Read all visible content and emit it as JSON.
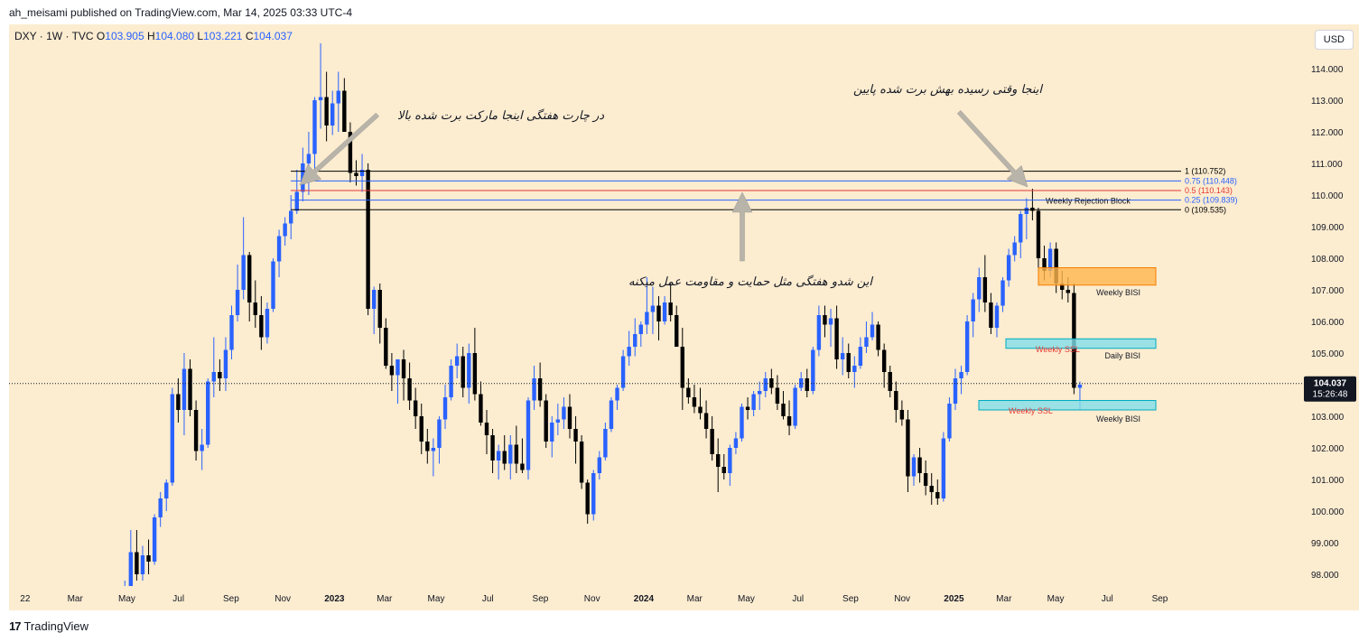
{
  "header": {
    "published": "ah_meisami published on TradingView.com, Mar 14, 2025 03:33 UTC-4"
  },
  "legend": {
    "symbol": "DXY · 1W · TVC",
    "o_label": "O",
    "o": "103.905",
    "h_label": "H",
    "h": "104.080",
    "l_label": "L",
    "l": "103.221",
    "c_label": "C",
    "c": "104.037"
  },
  "currency": "USD",
  "footer": {
    "brand": "TradingView"
  },
  "annotations": {
    "top_left": "در چارت هفتگی اینجا مارکت برت شده بالا",
    "top_right": "اینجا وقتی رسیده بهش برت شده پایین",
    "middle": "این شدو هفتگی مثل حمایت و مقاومت عمل میکنه"
  },
  "colors": {
    "background": "#fcecd0",
    "up": "#2962ff",
    "down": "#000000",
    "orange_zone": "#ffb74d",
    "cyan_zone": "#80deea",
    "fib_blue": "#2962ff",
    "fib_red": "#e53935",
    "arrow": "#b8b4aa"
  },
  "chart_data": {
    "type": "candlestick",
    "symbol": "DXY",
    "timeframe": "1W",
    "ylim": [
      97.4,
      115.2
    ],
    "y_ticks": [
      "98.000",
      "99.000",
      "100.000",
      "101.000",
      "102.000",
      "103.000",
      "104.000",
      "105.000",
      "106.000",
      "107.000",
      "108.000",
      "109.000",
      "110.000",
      "111.000",
      "112.000",
      "113.000",
      "114.000"
    ],
    "x_ticks": [
      {
        "label": "22",
        "date": "2022-01-01"
      },
      {
        "label": "Mar",
        "date": "2022-03-01"
      },
      {
        "label": "May",
        "date": "2022-05-01"
      },
      {
        "label": "Jul",
        "date": "2022-07-01"
      },
      {
        "label": "Sep",
        "date": "2022-09-01"
      },
      {
        "label": "Nov",
        "date": "2022-11-01"
      },
      {
        "label": "2023",
        "date": "2023-01-01"
      },
      {
        "label": "Mar",
        "date": "2023-03-01"
      },
      {
        "label": "May",
        "date": "2023-05-01"
      },
      {
        "label": "Jul",
        "date": "2023-07-01"
      },
      {
        "label": "Sep",
        "date": "2023-09-01"
      },
      {
        "label": "Nov",
        "date": "2023-11-01"
      },
      {
        "label": "2024",
        "date": "2024-01-01"
      },
      {
        "label": "Mar",
        "date": "2024-03-01"
      },
      {
        "label": "May",
        "date": "2024-05-01"
      },
      {
        "label": "Jul",
        "date": "2024-07-01"
      },
      {
        "label": "Sep",
        "date": "2024-09-01"
      },
      {
        "label": "Nov",
        "date": "2024-11-01"
      },
      {
        "label": "2025",
        "date": "2025-01-01"
      },
      {
        "label": "Mar",
        "date": "2025-03-01"
      },
      {
        "label": "May",
        "date": "2025-05-01"
      },
      {
        "label": "Jul",
        "date": "2025-07-01"
      },
      {
        "label": "Sep",
        "date": "2025-09-01"
      }
    ],
    "first_candle_date": "2022-02-14",
    "ohlc": [
      [
        96.1,
        96.6,
        95.8,
        96.4
      ],
      [
        96.4,
        97.0,
        96.2,
        96.6
      ],
      [
        96.6,
        97.8,
        96.4,
        97.6
      ],
      [
        97.6,
        99.4,
        97.2,
        98.7
      ],
      [
        98.7,
        99.4,
        97.8,
        98.0
      ],
      [
        98.0,
        98.9,
        97.8,
        98.6
      ],
      [
        98.6,
        99.1,
        98.0,
        98.4
      ],
      [
        98.4,
        99.9,
        98.3,
        99.8
      ],
      [
        99.8,
        100.6,
        99.5,
        100.4
      ],
      [
        100.4,
        101.0,
        100.0,
        100.9
      ],
      [
        100.9,
        103.9,
        100.8,
        103.7
      ],
      [
        103.7,
        104.2,
        102.8,
        103.2
      ],
      [
        103.2,
        105.0,
        102.4,
        104.5
      ],
      [
        104.5,
        104.8,
        103.0,
        103.2
      ],
      [
        103.2,
        103.5,
        101.6,
        101.9
      ],
      [
        101.9,
        102.6,
        101.3,
        102.1
      ],
      [
        102.1,
        104.2,
        102.0,
        104.1
      ],
      [
        104.1,
        105.5,
        103.6,
        104.4
      ],
      [
        104.4,
        104.8,
        103.8,
        104.2
      ],
      [
        104.2,
        105.5,
        103.8,
        105.1
      ],
      [
        105.1,
        106.5,
        104.8,
        106.2
      ],
      [
        106.2,
        107.8,
        106.0,
        107.0
      ],
      [
        107.0,
        109.3,
        106.7,
        108.1
      ],
      [
        108.1,
        108.2,
        106.0,
        106.6
      ],
      [
        106.6,
        107.3,
        105.8,
        106.2
      ],
      [
        106.2,
        106.8,
        105.1,
        105.5
      ],
      [
        105.5,
        106.6,
        105.3,
        106.4
      ],
      [
        106.4,
        108.0,
        106.3,
        107.9
      ],
      [
        107.9,
        108.9,
        107.4,
        108.7
      ],
      [
        108.7,
        109.3,
        108.4,
        109.1
      ],
      [
        109.1,
        110.0,
        108.6,
        109.5
      ],
      [
        109.5,
        110.8,
        109.4,
        110.1
      ],
      [
        110.1,
        111.5,
        109.8,
        111.0
      ],
      [
        111.0,
        112.0,
        110.0,
        111.3
      ],
      [
        111.3,
        113.1,
        110.8,
        113.0
      ],
      [
        113.0,
        114.8,
        112.1,
        113.1
      ],
      [
        113.1,
        113.9,
        111.7,
        112.2
      ],
      [
        112.2,
        113.3,
        111.9,
        112.9
      ],
      [
        112.9,
        113.9,
        112.0,
        113.3
      ],
      [
        113.3,
        113.7,
        112.1,
        112.0
      ],
      [
        112.0,
        112.3,
        110.4,
        110.7
      ],
      [
        110.7,
        111.1,
        110.3,
        110.6
      ],
      [
        110.6,
        111.3,
        110.1,
        110.8
      ],
      [
        110.8,
        111.0,
        106.2,
        106.4
      ],
      [
        106.4,
        107.1,
        105.6,
        107.0
      ],
      [
        107.0,
        107.2,
        105.3,
        105.8
      ],
      [
        105.8,
        106.1,
        104.5,
        104.6
      ],
      [
        104.6,
        105.0,
        103.8,
        104.3
      ],
      [
        104.3,
        104.7,
        103.4,
        104.8
      ],
      [
        104.8,
        105.1,
        103.5,
        104.2
      ],
      [
        104.2,
        104.7,
        103.2,
        103.5
      ],
      [
        103.5,
        103.9,
        102.6,
        103.0
      ],
      [
        103.0,
        103.4,
        101.8,
        102.2
      ],
      [
        102.2,
        102.6,
        101.5,
        101.9
      ],
      [
        101.9,
        102.3,
        101.1,
        102.0
      ],
      [
        102.0,
        103.0,
        101.5,
        102.9
      ],
      [
        102.9,
        104.0,
        102.6,
        103.6
      ],
      [
        103.6,
        104.8,
        103.5,
        104.6
      ],
      [
        104.6,
        105.3,
        104.2,
        104.9
      ],
      [
        104.9,
        105.2,
        103.6,
        103.9
      ],
      [
        103.9,
        105.3,
        103.4,
        105.0
      ],
      [
        105.0,
        105.8,
        103.5,
        103.7
      ],
      [
        103.7,
        104.1,
        102.7,
        102.8
      ],
      [
        102.8,
        103.2,
        101.8,
        102.4
      ],
      [
        102.4,
        102.6,
        101.2,
        101.6
      ],
      [
        101.6,
        102.1,
        101.0,
        101.9
      ],
      [
        101.9,
        102.4,
        101.3,
        101.5
      ],
      [
        101.5,
        102.4,
        101.0,
        102.1
      ],
      [
        102.1,
        102.7,
        101.2,
        101.5
      ],
      [
        101.5,
        102.3,
        101.2,
        101.3
      ],
      [
        101.3,
        103.6,
        101.0,
        103.5
      ],
      [
        103.5,
        104.6,
        103.2,
        104.2
      ],
      [
        104.2,
        104.7,
        103.3,
        103.5
      ],
      [
        103.5,
        103.7,
        102.0,
        102.2
      ],
      [
        102.2,
        103.0,
        101.7,
        102.8
      ],
      [
        102.8,
        103.4,
        102.4,
        102.9
      ],
      [
        102.9,
        103.6,
        102.6,
        103.3
      ],
      [
        103.3,
        103.7,
        102.3,
        102.6
      ],
      [
        102.6,
        103.0,
        101.5,
        102.2
      ],
      [
        102.2,
        102.4,
        100.7,
        100.9
      ],
      [
        100.9,
        101.0,
        99.6,
        99.9
      ],
      [
        99.9,
        101.3,
        99.7,
        101.2
      ],
      [
        101.2,
        101.9,
        101.0,
        101.7
      ],
      [
        101.7,
        102.8,
        101.6,
        102.6
      ],
      [
        102.6,
        103.6,
        102.5,
        103.5
      ],
      [
        103.5,
        104.0,
        103.2,
        103.9
      ],
      [
        103.9,
        105.1,
        103.8,
        104.9
      ],
      [
        104.9,
        105.7,
        104.6,
        105.2
      ],
      [
        105.2,
        106.1,
        104.9,
        105.6
      ],
      [
        105.6,
        106.0,
        105.2,
        105.9
      ],
      [
        105.9,
        107.4,
        105.6,
        106.3
      ],
      [
        106.3,
        107.1,
        105.6,
        106.5
      ],
      [
        106.5,
        106.8,
        105.4,
        106.0
      ],
      [
        106.0,
        106.8,
        105.9,
        106.6
      ],
      [
        106.6,
        107.2,
        106.0,
        106.2
      ],
      [
        106.2,
        106.5,
        105.2,
        105.2
      ],
      [
        105.2,
        105.8,
        103.2,
        103.9
      ],
      [
        103.9,
        104.2,
        103.4,
        103.6
      ],
      [
        103.6,
        104.0,
        103.1,
        103.3
      ],
      [
        103.3,
        103.9,
        102.9,
        103.1
      ],
      [
        103.1,
        103.5,
        102.3,
        102.6
      ],
      [
        102.6,
        103.0,
        101.6,
        101.8
      ],
      [
        101.8,
        102.3,
        100.6,
        101.4
      ],
      [
        101.4,
        101.8,
        101.0,
        101.2
      ],
      [
        101.2,
        102.1,
        100.8,
        102.0
      ],
      [
        102.0,
        102.5,
        101.8,
        102.3
      ],
      [
        102.3,
        103.4,
        102.2,
        103.3
      ],
      [
        103.3,
        103.6,
        102.9,
        103.2
      ],
      [
        103.2,
        103.8,
        103.0,
        103.7
      ],
      [
        103.7,
        104.1,
        103.2,
        103.8
      ],
      [
        103.8,
        104.4,
        103.6,
        104.2
      ],
      [
        104.2,
        104.5,
        103.7,
        103.9
      ],
      [
        103.9,
        104.3,
        103.2,
        103.4
      ],
      [
        103.4,
        103.8,
        102.9,
        103.0
      ],
      [
        103.0,
        103.5,
        102.4,
        102.7
      ],
      [
        102.7,
        104.0,
        102.6,
        103.9
      ],
      [
        103.9,
        104.4,
        103.8,
        104.2
      ],
      [
        104.2,
        104.5,
        103.6,
        103.8
      ],
      [
        103.8,
        105.2,
        103.7,
        105.1
      ],
      [
        105.1,
        106.5,
        104.9,
        106.2
      ],
      [
        106.2,
        106.5,
        105.5,
        105.9
      ],
      [
        105.9,
        106.4,
        105.2,
        106.1
      ],
      [
        106.1,
        106.5,
        104.5,
        104.8
      ],
      [
        104.8,
        105.5,
        104.3,
        105.0
      ],
      [
        105.0,
        105.3,
        104.2,
        104.4
      ],
      [
        104.4,
        104.9,
        103.9,
        104.6
      ],
      [
        104.6,
        105.5,
        104.5,
        105.2
      ],
      [
        105.2,
        106.0,
        105.0,
        105.5
      ],
      [
        105.5,
        106.3,
        105.4,
        105.9
      ],
      [
        105.9,
        106.0,
        104.9,
        105.1
      ],
      [
        105.1,
        105.3,
        103.9,
        104.4
      ],
      [
        104.4,
        104.6,
        103.6,
        103.8
      ],
      [
        103.8,
        104.1,
        102.8,
        103.2
      ],
      [
        103.2,
        103.5,
        102.7,
        102.9
      ],
      [
        102.9,
        103.2,
        100.6,
        101.1
      ],
      [
        101.1,
        101.8,
        100.8,
        101.7
      ],
      [
        101.7,
        102.0,
        100.9,
        101.2
      ],
      [
        101.2,
        101.6,
        100.5,
        100.8
      ],
      [
        100.8,
        101.2,
        100.2,
        100.6
      ],
      [
        100.6,
        101.0,
        100.2,
        100.4
      ],
      [
        100.4,
        102.5,
        100.3,
        102.3
      ],
      [
        102.3,
        103.6,
        102.2,
        103.4
      ],
      [
        103.4,
        104.5,
        103.2,
        104.2
      ],
      [
        104.2,
        104.6,
        103.7,
        104.4
      ],
      [
        104.4,
        106.2,
        104.3,
        106.0
      ],
      [
        106.0,
        106.9,
        105.5,
        106.7
      ],
      [
        106.7,
        107.7,
        106.3,
        107.4
      ],
      [
        107.4,
        108.1,
        106.3,
        106.6
      ],
      [
        106.6,
        106.9,
        105.6,
        105.8
      ],
      [
        105.8,
        106.6,
        105.5,
        106.5
      ],
      [
        106.5,
        107.4,
        106.3,
        107.3
      ],
      [
        107.3,
        108.3,
        107.1,
        108.1
      ],
      [
        108.1,
        108.7,
        107.9,
        108.5
      ],
      [
        108.5,
        109.5,
        108.0,
        109.4
      ],
      [
        109.4,
        109.9,
        108.6,
        109.6
      ],
      [
        109.6,
        110.2,
        109.2,
        109.5
      ],
      [
        109.5,
        109.6,
        107.6,
        108.0
      ],
      [
        108.0,
        108.4,
        107.3,
        107.6
      ],
      [
        107.6,
        108.5,
        107.4,
        108.3
      ],
      [
        108.3,
        108.5,
        106.9,
        107.2
      ],
      [
        107.2,
        107.6,
        106.7,
        107.0
      ],
      [
        107.0,
        107.4,
        106.6,
        106.9
      ],
      [
        106.9,
        107.2,
        103.7,
        103.9
      ],
      [
        103.9,
        104.1,
        103.2,
        104.0
      ]
    ],
    "last_price": "104.037",
    "countdown": "15:26:48",
    "fib_levels": [
      {
        "label": "1 (110.752)",
        "value": 110.752,
        "color": "#000000"
      },
      {
        "label": "0.75 (110.448)",
        "value": 110.448,
        "color": "#2962ff"
      },
      {
        "label": "0.5 (110.143)",
        "value": 110.143,
        "color": "#e53935"
      },
      {
        "label": "0.25 (109.839)",
        "value": 109.839,
        "color": "#2962ff"
      },
      {
        "label": "0 (109.535)",
        "value": 109.535,
        "color": "#000000"
      }
    ],
    "zones": [
      {
        "label": "Weekly BISI",
        "color": "orange",
        "low": 107.15,
        "high": 107.7
      },
      {
        "label": "Weekly SSL",
        "color": "cyan",
        "low": 105.15,
        "high": 105.45
      },
      {
        "label": "Weekly SSL",
        "color": "cyan",
        "low": 103.2,
        "high": 103.5
      }
    ],
    "labels": [
      {
        "text": "Weekly Rejection Block",
        "value": 109.85
      },
      {
        "text": "Weekly BISI",
        "value": 106.95
      },
      {
        "text": "Daily BISI",
        "value": 104.95
      },
      {
        "text": "Weekly BISI",
        "value": 102.95
      },
      {
        "text": "Weekly SSL",
        "value": 105.15
      },
      {
        "text": "Weekly SSL",
        "value": 103.2
      }
    ]
  }
}
